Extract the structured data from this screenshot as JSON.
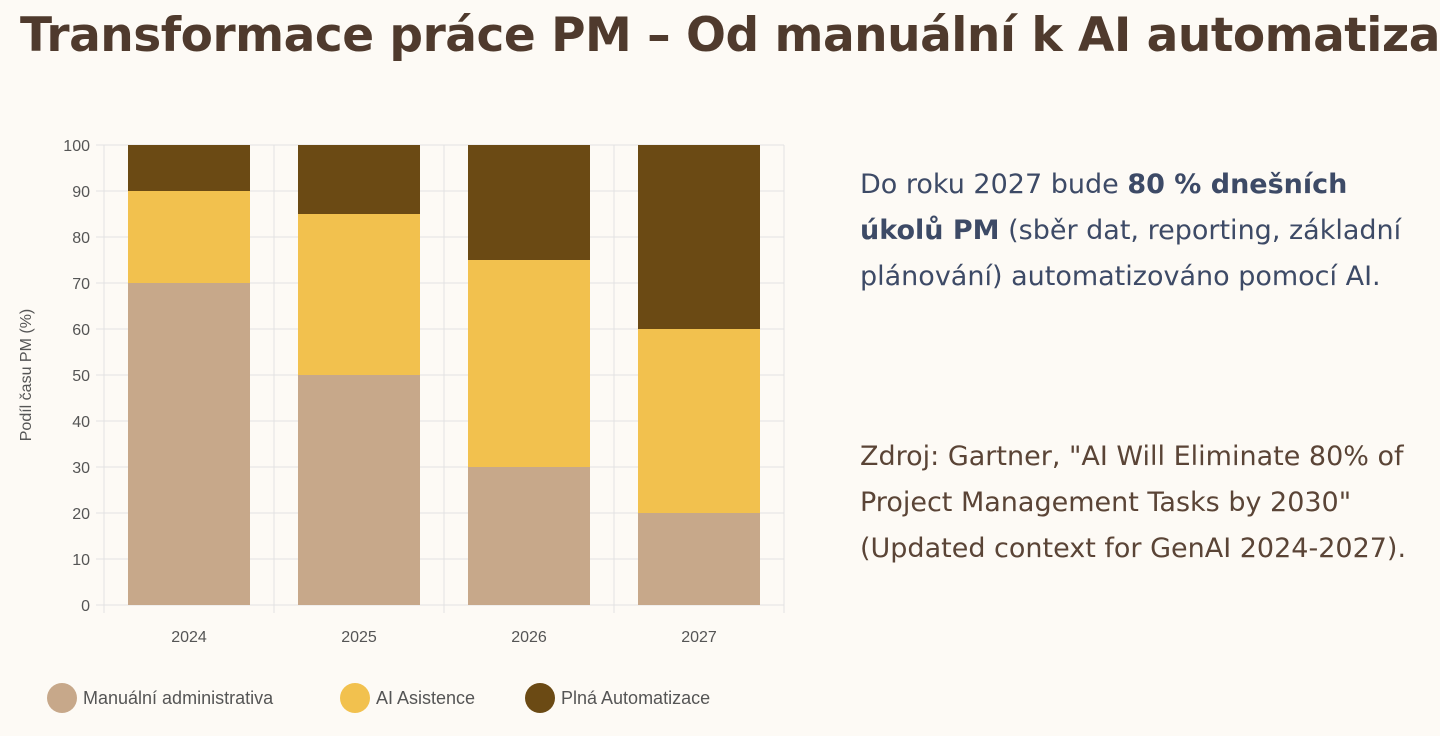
{
  "title": "Transformace práce PM – Od manuální k AI automatizaci",
  "summary": {
    "prefix": "Do roku 2027 bude ",
    "bold": "80 % dnešních úkolů PM",
    "suffix": " (sběr dat, reporting, základní plánování) automatizováno pomocí AI."
  },
  "source_text": "Zdroj: Gartner, \"AI Will Eliminate 80% of Project Management Tasks by 2030\" (Updated context for GenAI 2024-2027).",
  "colors": {
    "manual": "#c7a88a",
    "assist": "#f2c14e",
    "auto": "#6b4a14"
  },
  "chart_data": {
    "type": "bar",
    "stacked": true,
    "categories": [
      "2024",
      "2025",
      "2026",
      "2027"
    ],
    "series": [
      {
        "name": "Manuální administrativa",
        "values": [
          70,
          50,
          30,
          20
        ],
        "color": "#c7a88a"
      },
      {
        "name": "AI Asistence",
        "values": [
          20,
          35,
          45,
          40
        ],
        "color": "#f2c14e"
      },
      {
        "name": "Plná Automatizace",
        "values": [
          10,
          15,
          25,
          40
        ],
        "color": "#6b4a14"
      }
    ],
    "ylabel": "Podíl času PM (%)",
    "xlabel": "",
    "ylim": [
      0,
      100
    ],
    "yticks": [
      0,
      10,
      20,
      30,
      40,
      50,
      60,
      70,
      80,
      90,
      100
    ],
    "grid": true,
    "legend": "bottom"
  }
}
